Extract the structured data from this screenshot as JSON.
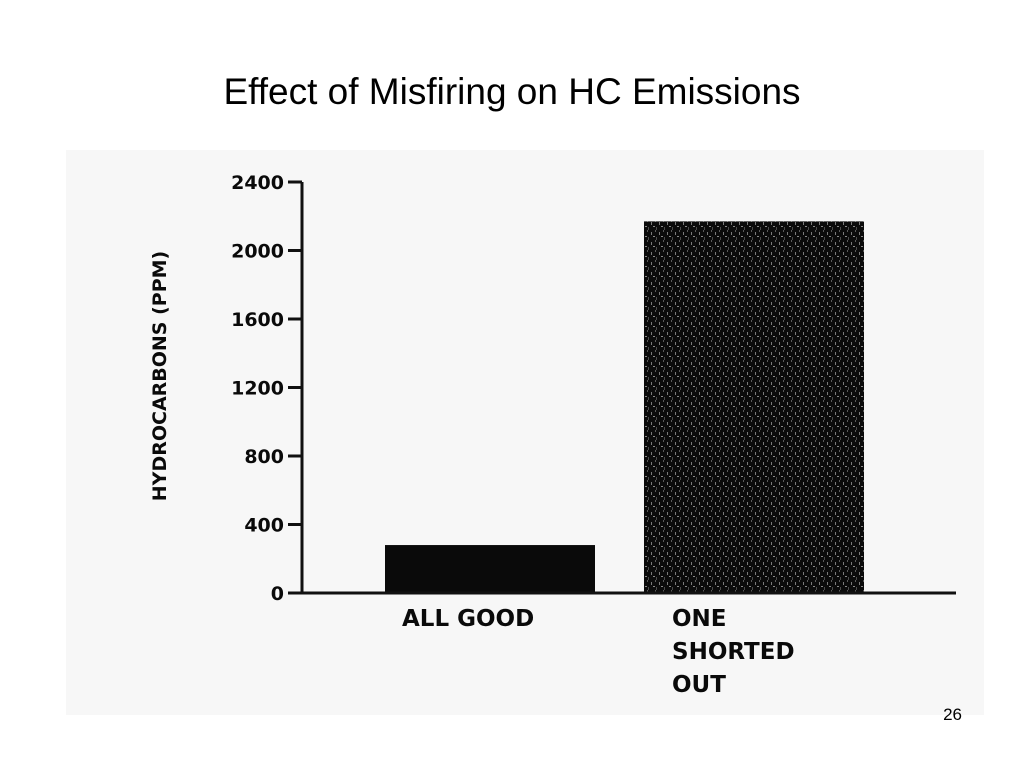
{
  "slide": {
    "title": "Effect of Misfiring on HC Emissions",
    "page_number": "26"
  },
  "chart_data": {
    "type": "bar",
    "categories": [
      [
        "ALL GOOD"
      ],
      [
        "ONE",
        "SHORTED",
        "OUT"
      ]
    ],
    "values": [
      280,
      2170
    ],
    "ylabel": "HYDROCARBONS (PPM)",
    "xlabel": "",
    "ylim": [
      0,
      2400
    ],
    "yticks": [
      0,
      400,
      800,
      1200,
      1600,
      2000,
      2400
    ],
    "ytick_labels": [
      "0",
      "400",
      "800",
      "1200",
      "1600",
      "2000",
      "2400"
    ],
    "grid": false,
    "colors": {
      "bar": "#0a0a0a",
      "axis": "#111111",
      "background": "#f7f7f7"
    }
  }
}
